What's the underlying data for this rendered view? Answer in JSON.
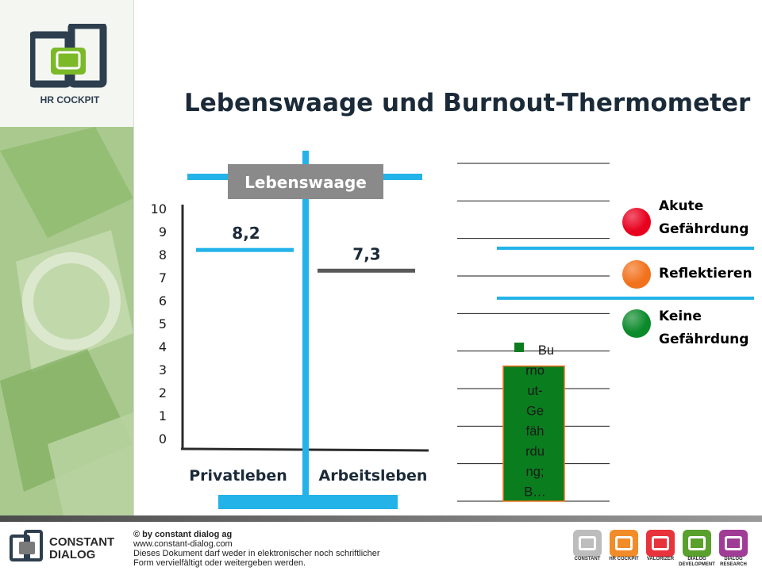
{
  "title": "Lebenswaage und Burnout-Thermometer",
  "brand": {
    "logo_caption": "HR COCKPIT",
    "accent": "#23b3e8",
    "dark": "#2d3e4e",
    "green": "#7bb928"
  },
  "chart_data": [
    {
      "type": "bar",
      "title": "Lebenswaage",
      "categories": [
        "Privatleben",
        "Arbeitsleben"
      ],
      "values": [
        8.2,
        7.3
      ],
      "value_labels": [
        "8,2",
        "7,3"
      ],
      "ylim": [
        0,
        10
      ],
      "yticks": [
        "10",
        "9",
        "8",
        "7",
        "6",
        "5",
        "4",
        "3",
        "2",
        "1",
        "0"
      ],
      "colors": [
        "#23b3e8",
        "#595959"
      ]
    },
    {
      "type": "bar",
      "series": [
        {
          "name": "Burnout-Gefährdung; B…",
          "values": [
            3.6
          ]
        }
      ],
      "ylim": [
        0,
        9
      ],
      "gridlines": 10,
      "color": "#0a7d1e"
    }
  ],
  "legend": [
    {
      "label_lines": [
        "Akute",
        "Gefährdung"
      ],
      "color": "#e8001e"
    },
    {
      "label_lines": [
        "Reflektieren"
      ],
      "color": "#f2711c"
    },
    {
      "label_lines": [
        "Keine",
        "Gefährdung"
      ],
      "color": "#0a8a2a"
    }
  ],
  "footer": {
    "company_lines": [
      "CONSTANT",
      "DIALOG"
    ],
    "copyright_lines": [
      "© by constant dialog ag",
      "www.constant-dialog.com",
      "Dieses Dokument darf weder in elektronischer noch schriftlicher",
      "Form vervielfältigt oder weitergeben werden."
    ],
    "products": [
      {
        "label": "CONSTANT",
        "color": "#bdbdbd"
      },
      {
        "label": "HR COCKPIT",
        "color": "#f28c28"
      },
      {
        "label": "VALORIZER",
        "color": "#e8323c"
      },
      {
        "label": "DIALOG DEVELOPMENT",
        "color": "#5aa02c"
      },
      {
        "label": "DIALOG RESEARCH",
        "color": "#a03c96"
      }
    ]
  }
}
